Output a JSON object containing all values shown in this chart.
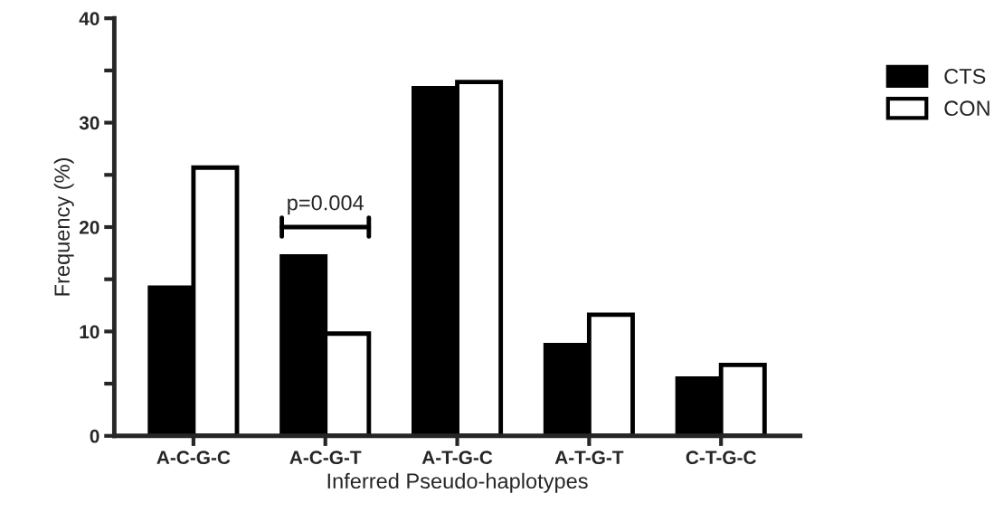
{
  "chart_data": {
    "type": "bar",
    "xlabel": "Inferred Pseudo-haplotypes",
    "ylabel": "Frequency (%)",
    "categories": [
      "A-C-G-C",
      "A-C-G-T",
      "A-T-G-C",
      "A-T-G-T",
      "C-T-G-C"
    ],
    "series": [
      {
        "name": "CTS",
        "color": "#000000",
        "values": [
          14.2,
          17.2,
          33.3,
          8.7,
          5.5
        ]
      },
      {
        "name": "CON",
        "color": "#ffffff",
        "values": [
          25.7,
          9.8,
          33.9,
          11.6,
          6.8
        ]
      }
    ],
    "ylim": [
      0,
      40
    ],
    "yticks": [
      0,
      {
        "value": 5,
        "label": null
      },
      10,
      {
        "value": 15,
        "label": null
      },
      20,
      {
        "value": 25,
        "label": null
      },
      30,
      {
        "value": 35,
        "label": null
      },
      40
    ],
    "annotations": [
      "p=0.004"
    ],
    "grid": false,
    "legend": "right"
  }
}
